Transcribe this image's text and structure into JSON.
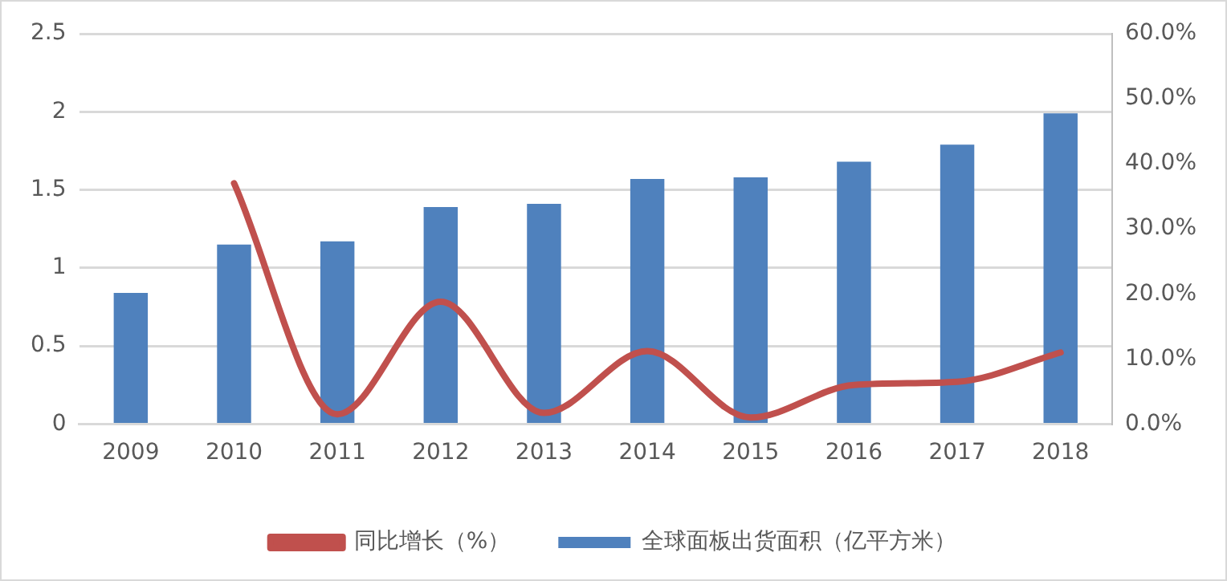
{
  "chart_data": {
    "type": "bar",
    "categories": [
      "2009",
      "2010",
      "2011",
      "2012",
      "2013",
      "2014",
      "2015",
      "2016",
      "2017",
      "2018"
    ],
    "series": [
      {
        "name": "全球面板出货面积（亿平方米）",
        "color": "#4f81bd",
        "values": [
          0.84,
          1.15,
          1.17,
          1.39,
          1.41,
          1.57,
          1.58,
          1.68,
          1.79,
          1.99
        ]
      },
      {
        "name": "同比增长（%）",
        "type": "line",
        "axis": "y2",
        "color": "#c0504d",
        "values": [
          null,
          37,
          1.5,
          18.8,
          1.7,
          11.2,
          1.0,
          6.0,
          6.5,
          11.0
        ]
      }
    ],
    "ylim": [
      0,
      2.5
    ],
    "yticks": [
      0,
      0.5,
      1,
      1.5,
      2,
      2.5
    ],
    "y2lim": [
      0,
      60
    ],
    "y2ticks": [
      {
        "value": 0,
        "label": "0.0%"
      },
      {
        "value": 10,
        "label": "10.0%"
      },
      {
        "value": 20,
        "label": "20.0%"
      },
      {
        "value": 30,
        "label": "30.0%"
      },
      {
        "value": 40,
        "label": "40.0%"
      },
      {
        "value": 50,
        "label": "50.0%"
      },
      {
        "value": 60,
        "label": "60.0%"
      }
    ],
    "grid": "y",
    "legend": "bottom",
    "marker": "none"
  }
}
